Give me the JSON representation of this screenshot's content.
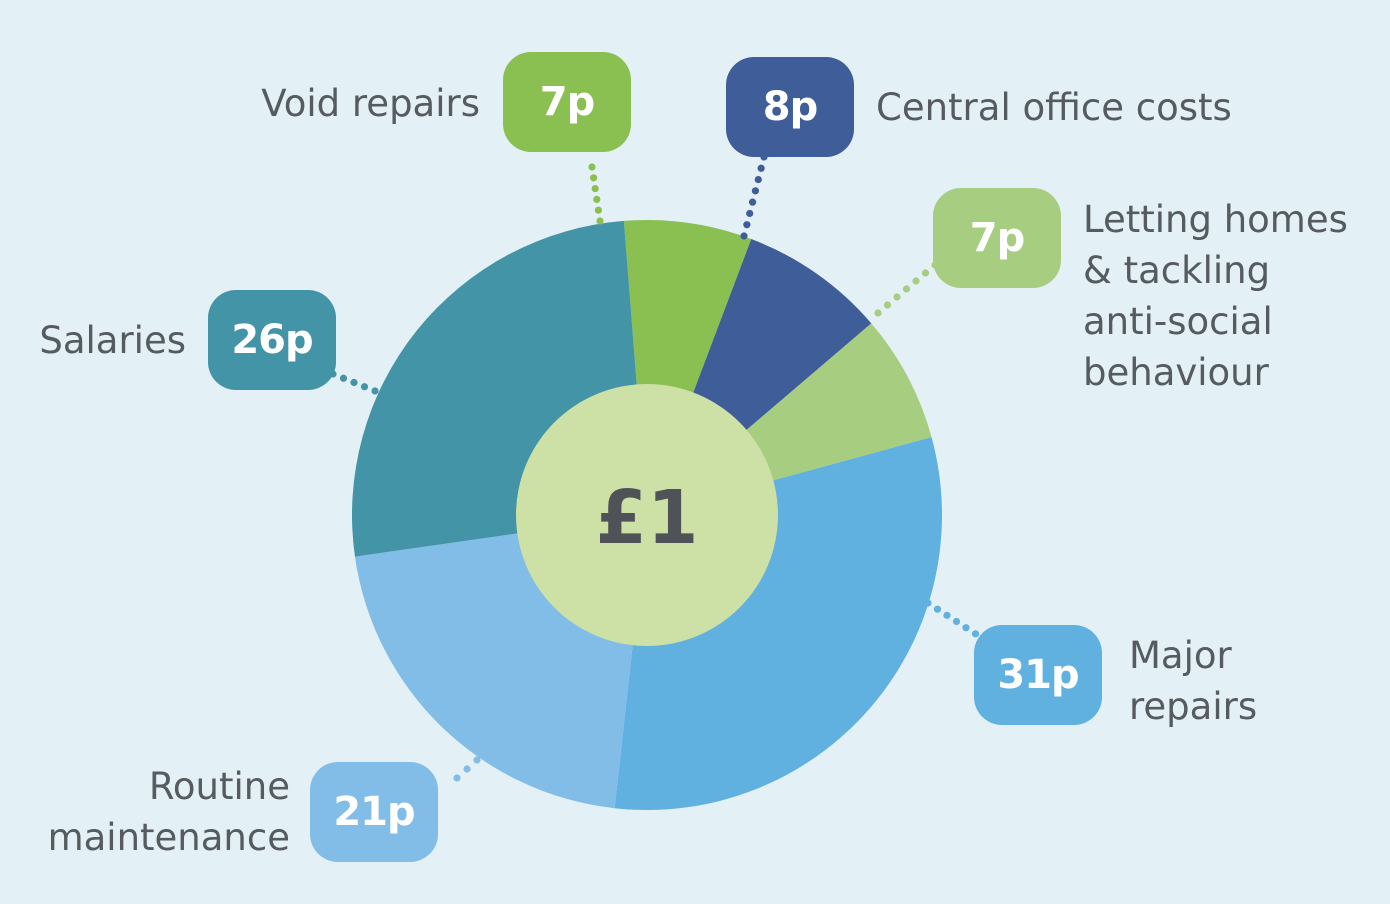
{
  "chart_data": {
    "type": "pie",
    "style": "donut",
    "center_label": "£1",
    "colors": {
      "background": "#e3f0f5",
      "center": "#cde0a5",
      "text": "#555b5f"
    },
    "slices": [
      {
        "category": "Void repairs",
        "value": 7,
        "label": "7p",
        "color": "#8abf52"
      },
      {
        "category": "Central office costs",
        "value": 8,
        "label": "8p",
        "color": "#3f5e99"
      },
      {
        "category": "Letting homes & tackling anti-social behaviour",
        "value": 7,
        "label": "7p",
        "color": "#a6cd80"
      },
      {
        "category": "Major repairs",
        "value": 31,
        "label": "31p",
        "color": "#60b0e0"
      },
      {
        "category": "Routine maintenance",
        "value": 21,
        "label": "21p",
        "color": "#82bde8"
      },
      {
        "category": "Salaries",
        "value": 26,
        "label": "26p",
        "color": "#4294a6"
      }
    ]
  },
  "callouts": [
    {
      "label_lines": [
        "Void repairs"
      ]
    },
    {
      "label_lines": [
        "Central office costs"
      ]
    },
    {
      "label_lines": [
        "Letting homes",
        "& tackling",
        "anti-social",
        "behaviour"
      ]
    },
    {
      "label_lines": [
        "Major",
        "repairs"
      ]
    },
    {
      "label_lines": [
        "Routine",
        "maintenance"
      ]
    },
    {
      "label_lines": [
        "Salaries"
      ]
    }
  ]
}
